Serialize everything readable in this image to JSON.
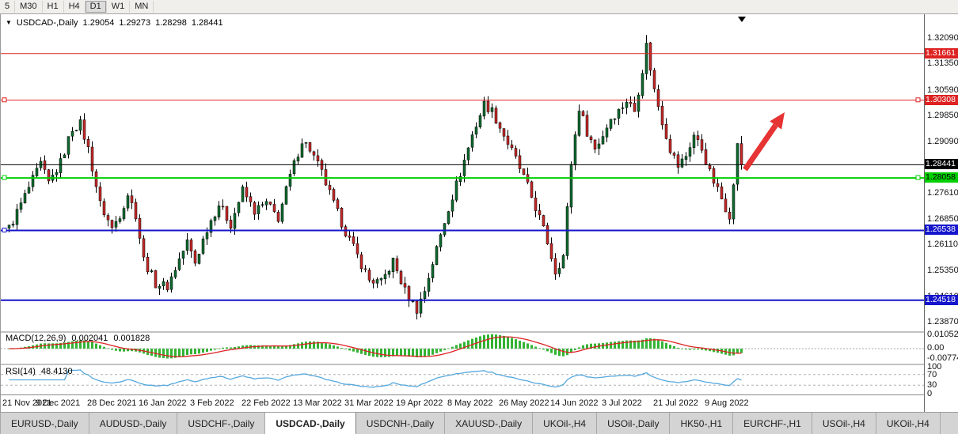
{
  "toolbar": {
    "timeframes": [
      "5",
      "M30",
      "H1",
      "H4",
      "D1",
      "W1",
      "MN"
    ],
    "active_timeframe": "D1"
  },
  "chart": {
    "symbol_title": "USDCAD-,Daily",
    "ohlc": {
      "open": "1.29054",
      "high": "1.29273",
      "low": "1.28298",
      "close": "1.28441"
    }
  },
  "chart_data": {
    "type": "candlestick",
    "title": "USDCAD-,Daily",
    "x_labels": [
      "21 Nov 2021",
      "9 Dec 2021",
      "28 Dec 2021",
      "16 Jan 2022",
      "3 Feb 2022",
      "22 Feb 2022",
      "13 Mar 2022",
      "31 Mar 2022",
      "19 Apr 2022",
      "8 May 2022",
      "26 May 2022",
      "14 Jun 2022",
      "3 Jul 2022",
      "21 Jul 2022",
      "9 Aug 2022"
    ],
    "y_ticks": [
      "1.32090",
      "1.31350",
      "1.30590",
      "1.29850",
      "1.29090",
      "1.28350",
      "1.27610",
      "1.26850",
      "1.26110",
      "1.25350",
      "1.24610",
      "1.23870"
    ],
    "y_range": [
      1.2359,
      1.328
    ],
    "price_levels": [
      {
        "price": 1.31661,
        "label": "1.31661",
        "color": "#dd2222",
        "width": 1,
        "handles": "",
        "text": "#fff"
      },
      {
        "price": 1.30308,
        "label": "1.30308",
        "color": "#dd2222",
        "width": 1,
        "handles": "lr",
        "text": "#fff"
      },
      {
        "price": 1.28441,
        "label": "1.28441",
        "color": "#000000",
        "width": 1,
        "handles": "",
        "text": "#fff"
      },
      {
        "price": 1.28058,
        "label": "1.28058",
        "color": "#00d000",
        "width": 2,
        "handles": "lr",
        "text": "#000"
      },
      {
        "price": 1.26538,
        "label": "1.26538",
        "color": "#1515cc",
        "width": 2,
        "handles": "l",
        "text": "#fff"
      },
      {
        "price": 1.24518,
        "label": "1.24518",
        "color": "#1515cc",
        "width": 2,
        "handles": "",
        "text": "#fff"
      }
    ],
    "candles": {
      "count": 186,
      "bull_color": "#0e6b2f",
      "bear_color": "#c62828",
      "last": [
        1.29054,
        1.29273,
        1.28298,
        1.28441
      ],
      "spike": {
        "index": 161,
        "high": 1.322
      },
      "waypoints": [
        [
          0,
          1.266
        ],
        [
          3,
          1.273
        ],
        [
          6,
          1.28
        ],
        [
          8,
          1.2845
        ],
        [
          10,
          1.279
        ],
        [
          13,
          1.285
        ],
        [
          16,
          1.295
        ],
        [
          18,
          1.2962
        ],
        [
          20,
          1.289
        ],
        [
          23,
          1.273
        ],
        [
          26,
          1.266
        ],
        [
          28,
          1.27
        ],
        [
          30,
          1.276
        ],
        [
          32,
          1.27
        ],
        [
          34,
          1.257
        ],
        [
          37,
          1.25
        ],
        [
          40,
          1.2492
        ],
        [
          43,
          1.257
        ],
        [
          45,
          1.262
        ],
        [
          47,
          1.256
        ],
        [
          50,
          1.266
        ],
        [
          53,
          1.273
        ],
        [
          56,
          1.2672
        ],
        [
          59,
          1.277
        ],
        [
          62,
          1.271
        ],
        [
          65,
          1.2732
        ],
        [
          68,
          1.269
        ],
        [
          71,
          1.281
        ],
        [
          74,
          1.2915
        ],
        [
          76,
          1.289
        ],
        [
          79,
          1.282
        ],
        [
          82,
          1.273
        ],
        [
          85,
          1.265
        ],
        [
          88,
          1.258
        ],
        [
          91,
          1.251
        ],
        [
          94,
          1.2502
        ],
        [
          97,
          1.2565
        ],
        [
          100,
          1.2478
        ],
        [
          103,
          1.2425
        ],
        [
          105,
          1.248
        ],
        [
          108,
          1.26
        ],
        [
          111,
          1.272
        ],
        [
          114,
          1.282
        ],
        [
          117,
          1.293
        ],
        [
          120,
          1.302
        ],
        [
          122,
          1.3
        ],
        [
          125,
          1.293
        ],
        [
          128,
          1.286
        ],
        [
          131,
          1.278
        ],
        [
          134,
          1.269
        ],
        [
          136,
          1.262
        ],
        [
          138,
          1.2535
        ],
        [
          140,
          1.258
        ],
        [
          142,
          1.285
        ],
        [
          144,
          1.301
        ],
        [
          146,
          1.294
        ],
        [
          148,
          1.289
        ],
        [
          150,
          1.293
        ],
        [
          152,
          1.298
        ],
        [
          154,
          1.3
        ],
        [
          156,
          1.303
        ],
        [
          158,
          1.3
        ],
        [
          160,
          1.312
        ],
        [
          161,
          1.319
        ],
        [
          163,
          1.306
        ],
        [
          165,
          1.297
        ],
        [
          167,
          1.289
        ],
        [
          169,
          1.284
        ],
        [
          171,
          1.287
        ],
        [
          173,
          1.293
        ],
        [
          175,
          1.289
        ],
        [
          177,
          1.282
        ],
        [
          179,
          1.277
        ],
        [
          181,
          1.272
        ],
        [
          182,
          1.27
        ],
        [
          183,
          1.278
        ],
        [
          184,
          1.291
        ],
        [
          185,
          1.28441
        ]
      ]
    },
    "annotations": [
      {
        "type": "arrow",
        "color": "#e63333",
        "from_index": 186,
        "from_price": 1.283,
        "to_index": 196,
        "to_price": 1.2996
      }
    ],
    "indicators": {
      "macd": {
        "name": "MACD(12,26,9)",
        "values": [
          "0.002041",
          "0.001828"
        ],
        "axis_labels": [
          "0.01052",
          "0.00",
          "-0.00774"
        ],
        "histogram_color": "#33b333",
        "signal_color": "#dd2222"
      },
      "rsi": {
        "name": "RSI(14)",
        "value": "48.4130",
        "axis_labels": [
          "100",
          "70",
          "30",
          "0"
        ],
        "levels": [
          70,
          30
        ],
        "line_color": "#55a8dd"
      }
    }
  },
  "tab_bar": {
    "tabs": [
      "EURUSD-,Daily",
      "AUDUSD-,Daily",
      "USDCHF-,Daily",
      "USDCAD-,Daily",
      "USDCNH-,Daily",
      "XAUUSD-,Daily",
      "UKOil-,H4",
      "USOil-,Daily",
      "HK50-,H1",
      "EURCHF-,H1",
      "USOil-,H4",
      "UKOil-,H4"
    ],
    "active_index": 3
  }
}
